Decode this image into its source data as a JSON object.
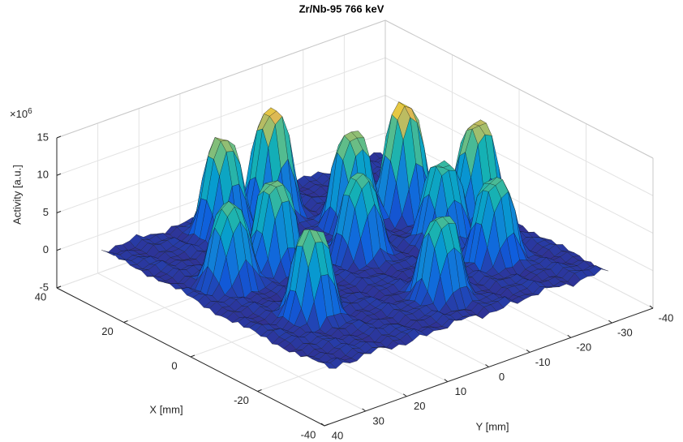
{
  "chart_data": {
    "type": "surface",
    "title": "Zr/Nb-95 766 keV",
    "xlabel": "X [mm]",
    "ylabel": "Y [mm]",
    "zlabel": "Activity [a.u.]",
    "zexponent": {
      "base": "×10",
      "power": "6"
    },
    "xlim": [
      -40,
      40
    ],
    "ylim": [
      -40,
      40
    ],
    "zlim": [
      -5,
      15
    ],
    "xticks": [
      -40,
      -20,
      0,
      20,
      40
    ],
    "yticks": [
      -40,
      -30,
      -20,
      -10,
      0,
      10,
      20,
      30,
      40
    ],
    "zticks": [
      -5,
      0,
      5,
      10,
      15
    ],
    "grid": true,
    "colormap": "parula",
    "peaks": {
      "x": [
        26,
        26,
        13,
        11,
        -1,
        8,
        2,
        -3,
        8,
        -13,
        -22,
        -16
      ],
      "y": [
        11,
        -1,
        -10,
        -21,
        -29,
        13,
        -3,
        -19,
        24,
        21,
        -3,
        -21
      ],
      "z": [
        12,
        13.5,
        12,
        14,
        13,
        11,
        10,
        10,
        10,
        11,
        10,
        10
      ]
    }
  }
}
